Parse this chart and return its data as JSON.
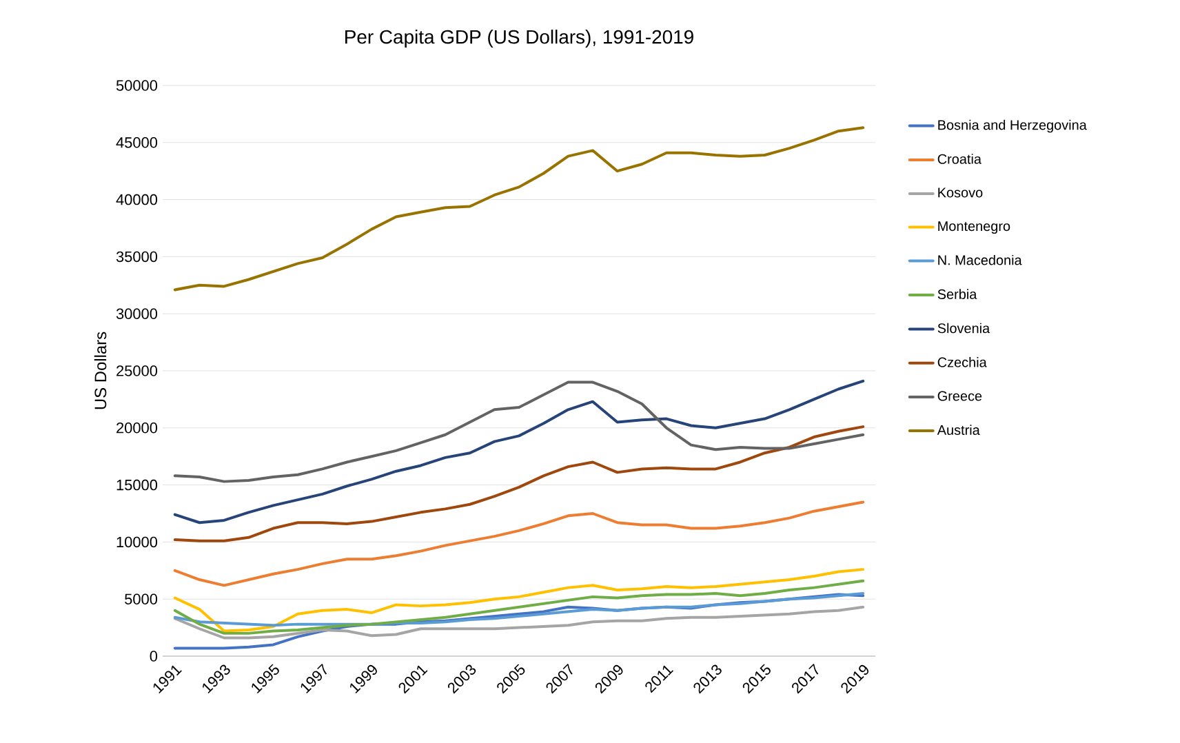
{
  "chart_data": {
    "type": "line",
    "title": "Per Capita GDP (US Dollars), 1991-2019",
    "ylabel": "US Dollars",
    "x": [
      1991,
      1992,
      1993,
      1994,
      1995,
      1996,
      1997,
      1998,
      1999,
      2000,
      2001,
      2002,
      2003,
      2004,
      2005,
      2006,
      2007,
      2008,
      2009,
      2010,
      2011,
      2012,
      2013,
      2014,
      2015,
      2016,
      2017,
      2018,
      2019
    ],
    "xlim": [
      1990.5,
      2019.5
    ],
    "xticks": [
      1991,
      1993,
      1995,
      1997,
      1999,
      2001,
      2003,
      2005,
      2007,
      2009,
      2011,
      2013,
      2015,
      2017,
      2019
    ],
    "ylim": [
      0,
      50000
    ],
    "yticks": [
      0,
      5000,
      10000,
      15000,
      20000,
      25000,
      30000,
      35000,
      40000,
      45000,
      50000
    ],
    "grid": "y",
    "legend": "right",
    "marker": "none",
    "line_style": "solid",
    "series": [
      {
        "name": "Bosnia and Herzegovina",
        "color": "#4472c4",
        "values": [
          700,
          700,
          700,
          800,
          1000,
          1700,
          2200,
          2600,
          2800,
          2800,
          3000,
          3100,
          3300,
          3500,
          3700,
          3900,
          4300,
          4200,
          4000,
          4200,
          4300,
          4200,
          4500,
          4700,
          4800,
          5000,
          5200,
          5400,
          5300
        ]
      },
      {
        "name": "Croatia",
        "color": "#ed7d31",
        "values": [
          7500,
          6700,
          6200,
          6700,
          7200,
          7600,
          8100,
          8500,
          8500,
          8800,
          9200,
          9700,
          10100,
          10500,
          11000,
          11600,
          12300,
          12500,
          11700,
          11500,
          11500,
          11200,
          11200,
          11400,
          11700,
          12100,
          12700,
          13100,
          13500
        ]
      },
      {
        "name": "Kosovo",
        "color": "#a5a5a5",
        "values": [
          3300,
          2400,
          1600,
          1600,
          1700,
          2000,
          2300,
          2200,
          1800,
          1900,
          2400,
          2400,
          2400,
          2400,
          2500,
          2600,
          2700,
          3000,
          3100,
          3100,
          3300,
          3400,
          3400,
          3500,
          3600,
          3700,
          3900,
          4000,
          4300
        ]
      },
      {
        "name": "Montenegro",
        "color": "#ffc000",
        "values": [
          5100,
          4100,
          2200,
          2300,
          2600,
          3700,
          4000,
          4100,
          3800,
          4500,
          4400,
          4500,
          4700,
          5000,
          5200,
          5600,
          6000,
          6200,
          5800,
          5900,
          6100,
          6000,
          6100,
          6300,
          6500,
          6700,
          7000,
          7400,
          7600
        ]
      },
      {
        "name": "N. Macedonia",
        "color": "#5b9bd5",
        "values": [
          3400,
          3000,
          2900,
          2800,
          2700,
          2800,
          2800,
          2800,
          2800,
          2900,
          2900,
          3000,
          3200,
          3300,
          3500,
          3700,
          3900,
          4100,
          4000,
          4200,
          4300,
          4300,
          4500,
          4600,
          4800,
          5000,
          5100,
          5300,
          5500
        ]
      },
      {
        "name": "Serbia",
        "color": "#70ad47",
        "values": [
          4000,
          2800,
          2000,
          2000,
          2200,
          2300,
          2500,
          2700,
          2800,
          3000,
          3200,
          3400,
          3700,
          4000,
          4300,
          4600,
          4900,
          5200,
          5100,
          5300,
          5400,
          5400,
          5500,
          5300,
          5500,
          5800,
          6000,
          6300,
          6600
        ]
      },
      {
        "name": "Slovenia",
        "color": "#264478",
        "values": [
          12400,
          11700,
          11900,
          12600,
          13200,
          13700,
          14200,
          14900,
          15500,
          16200,
          16700,
          17400,
          17800,
          18800,
          19300,
          20400,
          21600,
          22300,
          20500,
          20700,
          20800,
          20200,
          20000,
          20400,
          20800,
          21600,
          22500,
          23400,
          24100
        ]
      },
      {
        "name": "Czechia",
        "color": "#9e480e",
        "values": [
          10200,
          10100,
          10100,
          10400,
          11200,
          11700,
          11700,
          11600,
          11800,
          12200,
          12600,
          12900,
          13300,
          14000,
          14800,
          15800,
          16600,
          17000,
          16100,
          16400,
          16500,
          16400,
          16400,
          17000,
          17800,
          18300,
          19200,
          19700,
          20100
        ]
      },
      {
        "name": "Greece",
        "color": "#636363",
        "values": [
          15800,
          15700,
          15300,
          15400,
          15700,
          15900,
          16400,
          17000,
          17500,
          18000,
          18700,
          19400,
          20500,
          21600,
          21800,
          22900,
          24000,
          24000,
          23200,
          22100,
          20000,
          18500,
          18100,
          18300,
          18200,
          18200,
          18600,
          19000,
          19400
        ]
      },
      {
        "name": "Austria",
        "color": "#997300",
        "values": [
          32100,
          32500,
          32400,
          33000,
          33700,
          34400,
          34900,
          36100,
          37400,
          38500,
          38900,
          39300,
          39400,
          40400,
          41100,
          42300,
          43800,
          44300,
          42500,
          43100,
          44100,
          44100,
          43900,
          43800,
          43900,
          44500,
          45200,
          46000,
          46300
        ]
      }
    ]
  }
}
